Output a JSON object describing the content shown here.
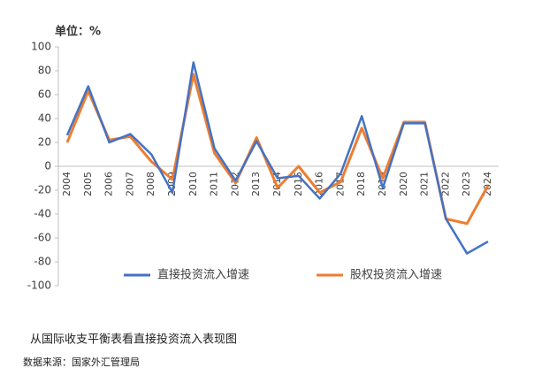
{
  "chart_data": {
    "type": "line",
    "unit_label": "单位：%",
    "categories": [
      "2004",
      "2005",
      "2006",
      "2007",
      "2008",
      "2009",
      "2010",
      "2011",
      "2012",
      "2013",
      "2014",
      "2015",
      "2016",
      "2017",
      "2018",
      "2019",
      "2020",
      "2021",
      "2022",
      "2023",
      "2024"
    ],
    "series": [
      {
        "name": "直接投资流入增速",
        "color": "#4472c4",
        "values": [
          26,
          67,
          20,
          27,
          10,
          -22,
          87,
          15,
          -12,
          21,
          -10,
          -8,
          -27,
          -6,
          42,
          -18,
          36,
          36,
          -44,
          -73,
          -63
        ]
      },
      {
        "name": "股权投资流入增速",
        "color": "#ed7d31",
        "values": [
          20,
          63,
          22,
          25,
          4,
          -11,
          77,
          11,
          -14,
          24,
          -18,
          0,
          -22,
          -13,
          32,
          -10,
          37,
          37,
          -44,
          -48,
          -16
        ]
      }
    ],
    "ylim": [
      -100,
      100
    ],
    "yticks": [
      -100,
      -80,
      -60,
      -40,
      -20,
      0,
      20,
      40,
      60,
      80,
      100
    ],
    "caption": "从国际收支平衡表看直接投资流入表现图",
    "source": "数据来源：国家外汇管理局"
  }
}
